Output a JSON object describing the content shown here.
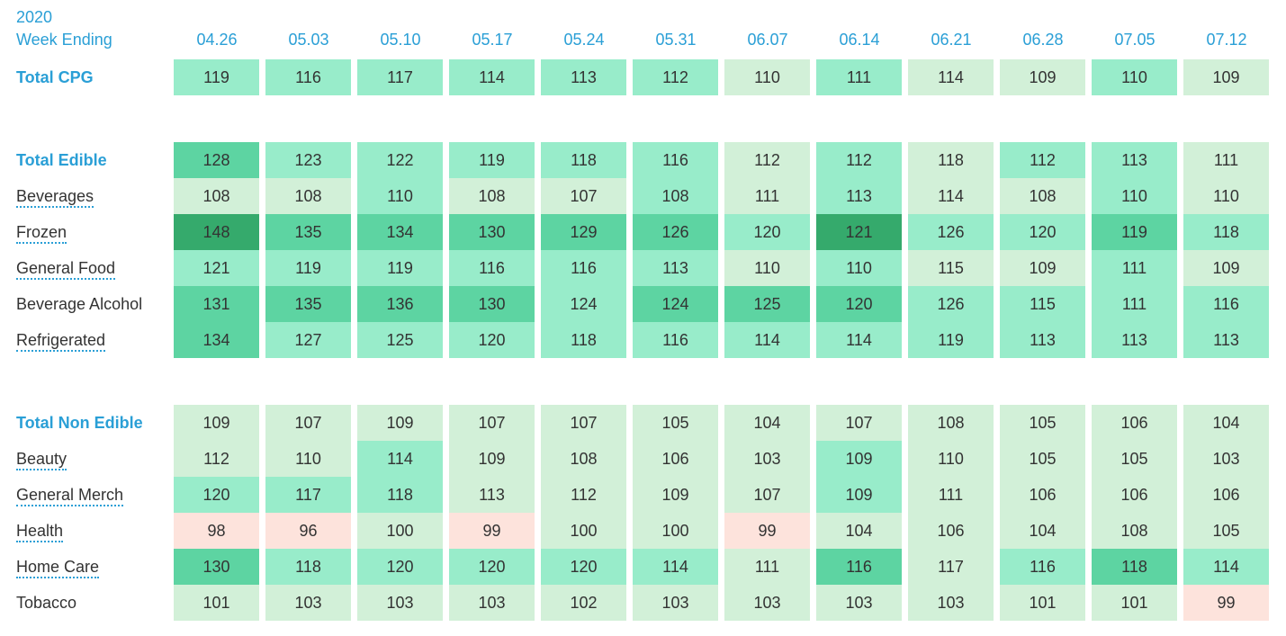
{
  "header": {
    "year": "2020",
    "week_label": "Week Ending"
  },
  "colors": {
    "accent": "#2a9fd6",
    "cell_text": "#333333",
    "scale": {
      "pink": "#fde3dc",
      "pale": "#d2f0d8",
      "light": "#98ecca",
      "mid": "#5dd4a2",
      "dark": "#35aa6c"
    }
  },
  "chart_data": {
    "type": "heatmap",
    "columns": [
      "04.26",
      "05.03",
      "05.10",
      "05.17",
      "05.24",
      "05.31",
      "06.07",
      "06.14",
      "06.21",
      "06.28",
      "07.05",
      "07.12"
    ],
    "groups": [
      {
        "rows": [
          {
            "label": "Total CPG",
            "total": true,
            "dotted": false,
            "values": [
              119,
              116,
              117,
              114,
              113,
              112,
              110,
              111,
              114,
              109,
              110,
              109
            ],
            "shades": [
              "light",
              "light",
              "light",
              "light",
              "light",
              "light",
              "pale",
              "light",
              "pale",
              "pale",
              "light",
              "pale"
            ]
          }
        ]
      },
      {
        "rows": [
          {
            "label": "Total Edible",
            "total": true,
            "dotted": false,
            "values": [
              128,
              123,
              122,
              119,
              118,
              116,
              112,
              112,
              118,
              112,
              113,
              111
            ],
            "shades": [
              "mid",
              "light",
              "light",
              "light",
              "light",
              "light",
              "pale",
              "light",
              "pale",
              "light",
              "light",
              "pale"
            ]
          },
          {
            "label": "Beverages",
            "total": false,
            "dotted": true,
            "values": [
              108,
              108,
              110,
              108,
              107,
              108,
              111,
              113,
              114,
              108,
              110,
              110
            ],
            "shades": [
              "pale",
              "pale",
              "light",
              "pale",
              "pale",
              "light",
              "pale",
              "light",
              "pale",
              "pale",
              "light",
              "pale"
            ]
          },
          {
            "label": "Frozen",
            "total": false,
            "dotted": true,
            "values": [
              148,
              135,
              134,
              130,
              129,
              126,
              120,
              121,
              126,
              120,
              119,
              118
            ],
            "shades": [
              "dark",
              "mid",
              "mid",
              "mid",
              "mid",
              "mid",
              "light",
              "dark",
              "light",
              "light",
              "mid",
              "light"
            ]
          },
          {
            "label": "General Food",
            "total": false,
            "dotted": true,
            "values": [
              121,
              119,
              119,
              116,
              116,
              113,
              110,
              110,
              115,
              109,
              111,
              109
            ],
            "shades": [
              "light",
              "light",
              "light",
              "light",
              "light",
              "light",
              "pale",
              "light",
              "pale",
              "pale",
              "light",
              "pale"
            ]
          },
          {
            "label": "Beverage Alcohol",
            "total": false,
            "dotted": false,
            "values": [
              131,
              135,
              136,
              130,
              124,
              124,
              125,
              120,
              126,
              115,
              111,
              116
            ],
            "shades": [
              "mid",
              "mid",
              "mid",
              "mid",
              "light",
              "mid",
              "mid",
              "mid",
              "light",
              "light",
              "light",
              "light"
            ]
          },
          {
            "label": "Refrigerated",
            "total": false,
            "dotted": true,
            "values": [
              134,
              127,
              125,
              120,
              118,
              116,
              114,
              114,
              119,
              113,
              113,
              113
            ],
            "shades": [
              "mid",
              "light",
              "light",
              "light",
              "light",
              "light",
              "light",
              "light",
              "light",
              "light",
              "light",
              "light"
            ]
          }
        ]
      },
      {
        "rows": [
          {
            "label": "Total Non Edible",
            "total": true,
            "dotted": false,
            "values": [
              109,
              107,
              109,
              107,
              107,
              105,
              104,
              107,
              108,
              105,
              106,
              104
            ],
            "shades": [
              "pale",
              "pale",
              "pale",
              "pale",
              "pale",
              "pale",
              "pale",
              "pale",
              "pale",
              "pale",
              "pale",
              "pale"
            ]
          },
          {
            "label": "Beauty",
            "total": false,
            "dotted": true,
            "values": [
              112,
              110,
              114,
              109,
              108,
              106,
              103,
              109,
              110,
              105,
              105,
              103
            ],
            "shades": [
              "pale",
              "pale",
              "light",
              "pale",
              "pale",
              "pale",
              "pale",
              "light",
              "pale",
              "pale",
              "pale",
              "pale"
            ]
          },
          {
            "label": "General Merch",
            "total": false,
            "dotted": true,
            "values": [
              120,
              117,
              118,
              113,
              112,
              109,
              107,
              109,
              111,
              106,
              106,
              106
            ],
            "shades": [
              "light",
              "light",
              "light",
              "pale",
              "pale",
              "pale",
              "pale",
              "light",
              "pale",
              "pale",
              "pale",
              "pale"
            ]
          },
          {
            "label": "Health",
            "total": false,
            "dotted": true,
            "values": [
              98,
              96,
              100,
              99,
              100,
              100,
              99,
              104,
              106,
              104,
              108,
              105
            ],
            "shades": [
              "pink",
              "pink",
              "pale",
              "pink",
              "pale",
              "pale",
              "pink",
              "pale",
              "pale",
              "pale",
              "pale",
              "pale"
            ]
          },
          {
            "label": "Home Care",
            "total": false,
            "dotted": true,
            "values": [
              130,
              118,
              120,
              120,
              120,
              114,
              111,
              116,
              117,
              116,
              118,
              114
            ],
            "shades": [
              "mid",
              "light",
              "light",
              "light",
              "light",
              "light",
              "pale",
              "mid",
              "pale",
              "light",
              "mid",
              "light"
            ]
          },
          {
            "label": "Tobacco",
            "total": false,
            "dotted": false,
            "values": [
              101,
              103,
              103,
              103,
              102,
              103,
              103,
              103,
              103,
              101,
              101,
              99
            ],
            "shades": [
              "pale",
              "pale",
              "pale",
              "pale",
              "pale",
              "pale",
              "pale",
              "pale",
              "pale",
              "pale",
              "pale",
              "pink"
            ]
          }
        ]
      }
    ]
  }
}
